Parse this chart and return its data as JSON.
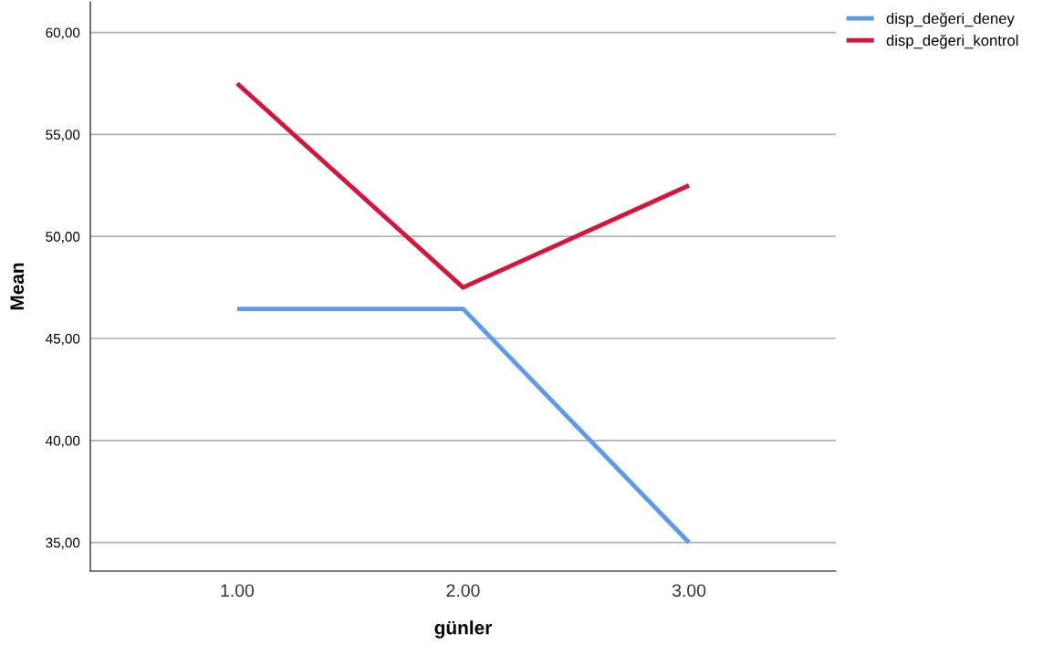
{
  "chart_data": {
    "type": "line",
    "xlabel": "günler",
    "ylabel": "Mean",
    "categories": [
      "1.00",
      "2.00",
      "3.00"
    ],
    "series": [
      {
        "name": "disp_değeri_deney",
        "color": "#5b9bea",
        "values": [
          46.45,
          46.45,
          35.0
        ]
      },
      {
        "name": "disp_değeri_kontrol",
        "color": "#d8143a",
        "values": [
          57.5,
          47.5,
          52.5
        ]
      }
    ],
    "ylim": [
      33.6,
      61.5
    ],
    "yticks": [
      {
        "value": 35,
        "label": "35,00"
      },
      {
        "value": 40,
        "label": "40,00"
      },
      {
        "value": 45,
        "label": "45,00"
      },
      {
        "value": 50,
        "label": "50,00"
      },
      {
        "value": 55,
        "label": "55,00"
      },
      {
        "value": 60,
        "label": "60,00"
      }
    ],
    "grid": "y",
    "legend": "top right",
    "line_style": "solid",
    "marker": "none"
  }
}
